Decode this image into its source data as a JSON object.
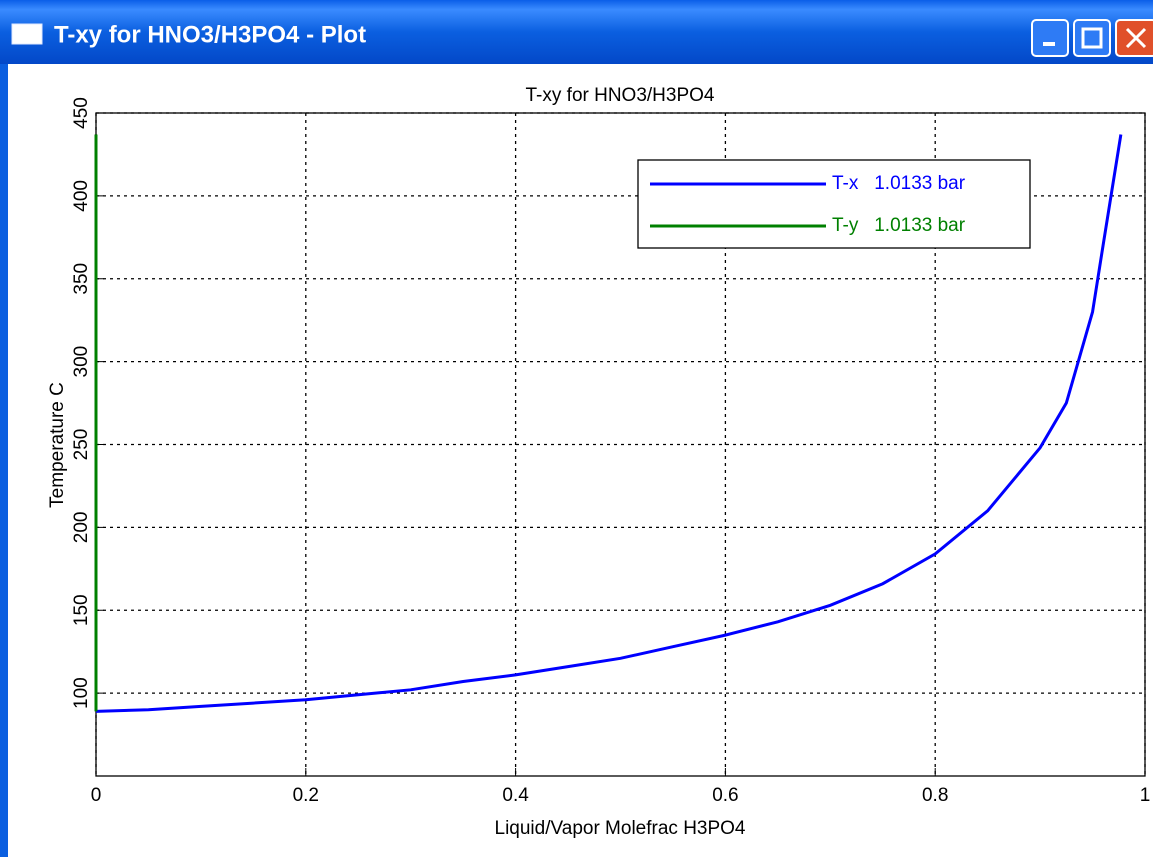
{
  "window_title": "T-xy for HNO3/H3PO4 - Plot",
  "chart_data": {
    "type": "line",
    "title": "T-xy for HNO3/H3PO4",
    "x_label": "Liquid/Vapor Molefrac H3PO4",
    "y_label": "Temperature  C",
    "series": [
      {
        "name": "T-x   1.0133 bar",
        "color": "#0000ff",
        "x": [
          0,
          0.05,
          0.1,
          0.15,
          0.2,
          0.25,
          0.3,
          0.35,
          0.4,
          0.45,
          0.5,
          0.55,
          0.6,
          0.65,
          0.7,
          0.75,
          0.8,
          0.85,
          0.9,
          0.925,
          0.95,
          0.96,
          0.977
        ],
        "values": [
          89,
          90,
          92,
          94,
          96,
          99,
          102,
          107,
          111,
          116,
          121,
          128,
          135,
          143,
          153,
          166,
          184,
          210,
          248,
          275,
          330,
          370,
          437
        ]
      },
      {
        "name": "T-y   1.0133 bar",
        "color": "#008000",
        "x": [
          0,
          0
        ],
        "values": [
          89,
          437
        ]
      }
    ],
    "xlim": [
      0,
      1
    ],
    "xticks": [
      0,
      0.2,
      0.4,
      0.6,
      0.8,
      1
    ],
    "ylim": [
      50,
      450
    ],
    "yticks": [
      100,
      150,
      200,
      250,
      300,
      350,
      400,
      450
    ],
    "grid": true,
    "legend": "upper right"
  }
}
